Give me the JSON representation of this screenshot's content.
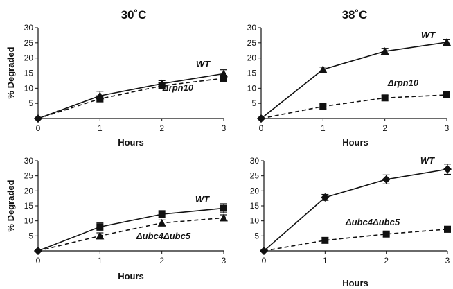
{
  "figure": {
    "column_titles": [
      "30˚C",
      "38˚C"
    ],
    "ylabel": "% Degraded",
    "xlabel": "Hours"
  },
  "chart_data": [
    {
      "type": "line",
      "title": "30˚C",
      "xlabel": "Hours",
      "ylabel": "% Degraded",
      "x": [
        0,
        1,
        2,
        3
      ],
      "xlim": [
        0,
        3
      ],
      "ylim": [
        0,
        30
      ],
      "yticks": [
        5,
        10,
        15,
        20,
        25,
        30
      ],
      "series": [
        {
          "name": "WT",
          "style": "solid",
          "marker": "triangle",
          "values": [
            0,
            7.5,
            11.5,
            14.8
          ],
          "errors": [
            0,
            1.5,
            1.0,
            1.3
          ]
        },
        {
          "name": "Δrpn10",
          "style": "dashed",
          "marker": "square",
          "values": [
            0,
            6.5,
            10.8,
            13.3
          ],
          "errors": [
            0,
            1.0,
            1.0,
            1.0
          ]
        }
      ]
    },
    {
      "type": "line",
      "title": "38˚C",
      "xlabel": "Hours",
      "ylabel": "",
      "x": [
        0,
        1,
        2,
        3
      ],
      "xlim": [
        0,
        3
      ],
      "ylim": [
        0,
        30
      ],
      "yticks": [
        5,
        10,
        15,
        20,
        25,
        30
      ],
      "series": [
        {
          "name": "WT",
          "style": "solid",
          "marker": "triangle",
          "values": [
            0,
            16.2,
            22.2,
            25.2
          ],
          "errors": [
            0,
            0.8,
            1.0,
            1.0
          ]
        },
        {
          "name": "Δrpn10",
          "style": "dashed",
          "marker": "square",
          "values": [
            0,
            4.0,
            6.8,
            7.8
          ],
          "errors": [
            0,
            0.8,
            0.8,
            0.8
          ]
        }
      ]
    },
    {
      "type": "line",
      "title": "",
      "xlabel": "Hours",
      "ylabel": "% Degraded",
      "x": [
        0,
        1,
        2,
        3
      ],
      "xlim": [
        0,
        3
      ],
      "ylim": [
        0,
        30
      ],
      "yticks": [
        5,
        10,
        15,
        20,
        25,
        30
      ],
      "series": [
        {
          "name": "WT",
          "style": "solid",
          "marker": "square",
          "values": [
            0,
            8.0,
            12.2,
            14.2
          ],
          "errors": [
            0,
            1.3,
            1.2,
            1.5
          ]
        },
        {
          "name": "Δubc4Δubc5",
          "style": "dashed",
          "marker": "triangle",
          "values": [
            0,
            5.0,
            9.3,
            11.0
          ],
          "errors": [
            0,
            1.0,
            1.0,
            1.0
          ]
        }
      ]
    },
    {
      "type": "line",
      "title": "",
      "xlabel": "Hours",
      "ylabel": "",
      "x": [
        0,
        1,
        2,
        3
      ],
      "xlim": [
        0,
        3
      ],
      "ylim": [
        0,
        30
      ],
      "yticks": [
        5,
        10,
        15,
        20,
        25,
        30
      ],
      "series": [
        {
          "name": "WT",
          "style": "solid",
          "marker": "diamond",
          "values": [
            0,
            17.8,
            23.8,
            27.2
          ],
          "errors": [
            0,
            1.0,
            1.5,
            1.7
          ]
        },
        {
          "name": "Δubc4Δubc5",
          "style": "dashed",
          "marker": "square",
          "values": [
            0,
            3.5,
            5.6,
            7.2
          ],
          "errors": [
            0,
            0.9,
            0.6,
            1.0
          ]
        }
      ]
    }
  ]
}
